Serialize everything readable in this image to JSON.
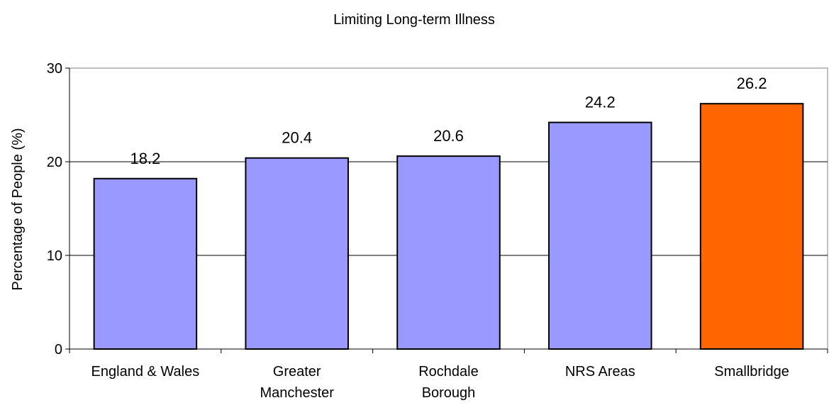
{
  "chart_data": {
    "type": "bar",
    "title": "Limiting  Long-term Illness",
    "xlabel": "",
    "ylabel": "Percentage of People (%)",
    "ylim": [
      0,
      30
    ],
    "yticks": [
      0,
      10,
      20,
      30
    ],
    "grid": true,
    "legend": "none",
    "categories": [
      [
        "England & Wales"
      ],
      [
        "Greater",
        "Manchester"
      ],
      [
        "Rochdale",
        "Borough"
      ],
      [
        "NRS Areas"
      ],
      [
        "Smallbridge"
      ]
    ],
    "values": [
      18.2,
      20.4,
      20.6,
      24.2,
      26.2
    ],
    "data_labels": [
      "18.2",
      "20.4",
      "20.6",
      "24.2",
      "26.2"
    ],
    "bar_colors": [
      "#9999ff",
      "#9999ff",
      "#9999ff",
      "#9999ff",
      "#ff6600"
    ]
  }
}
